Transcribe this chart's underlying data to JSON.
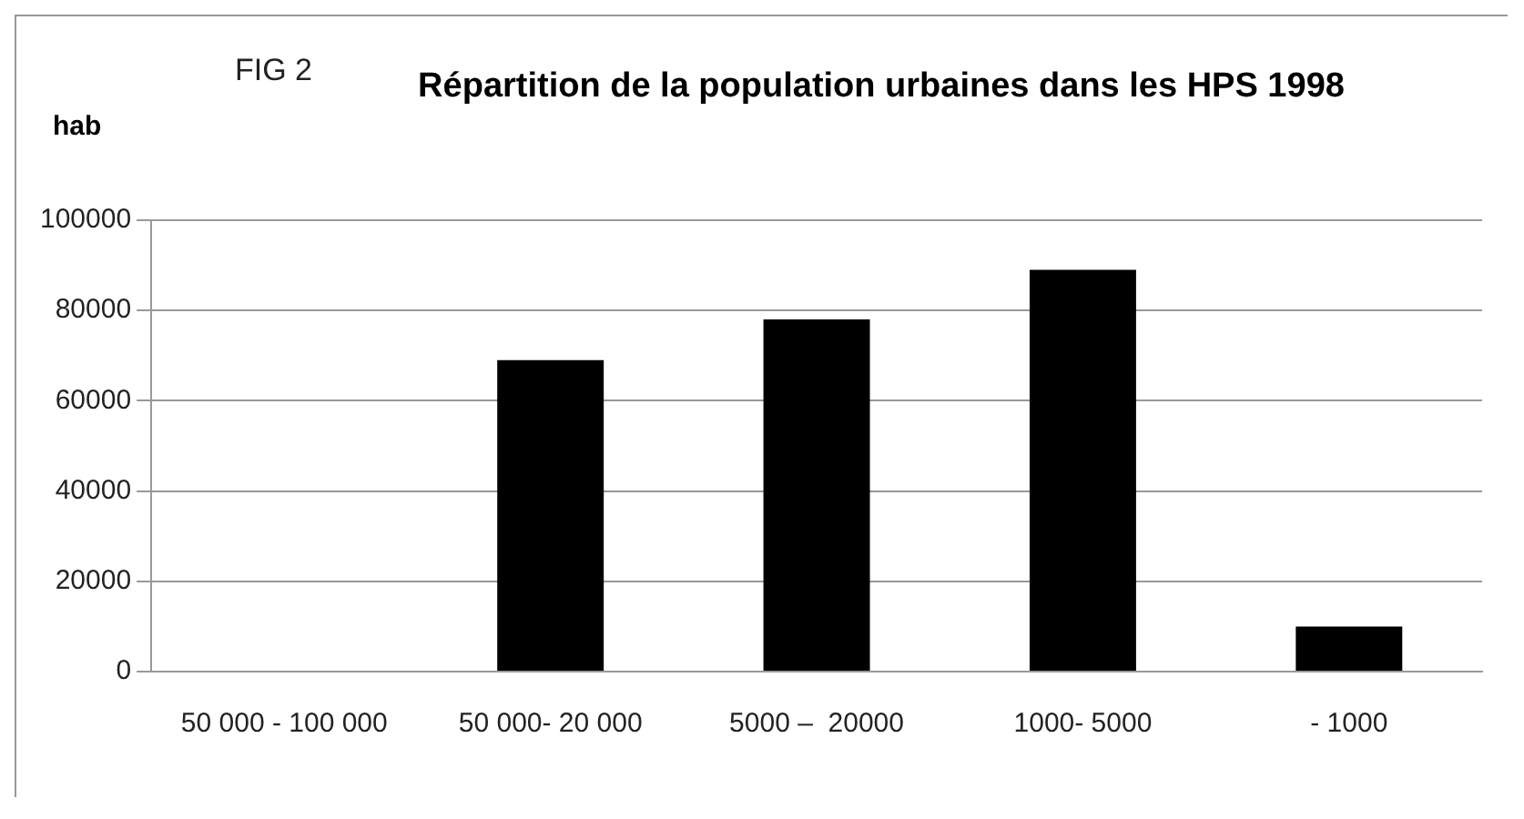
{
  "chart_data": {
    "type": "bar",
    "title": "Répartition de la population urbaines dans les HPS 1998",
    "ylabel": "hab",
    "annotations": [
      "FIG 2"
    ],
    "categories": [
      "50 000 - 100 000",
      "50 000- 20 000",
      "5000 –  20000",
      "1000- 5000",
      "- 1000"
    ],
    "values": [
      null,
      69000,
      78000,
      89000,
      10000
    ],
    "color": "#000000",
    "ylim": [
      0,
      100000
    ],
    "yticks": [
      0,
      20000,
      40000,
      60000,
      80000,
      100000
    ],
    "grid": "y",
    "legend": false
  }
}
